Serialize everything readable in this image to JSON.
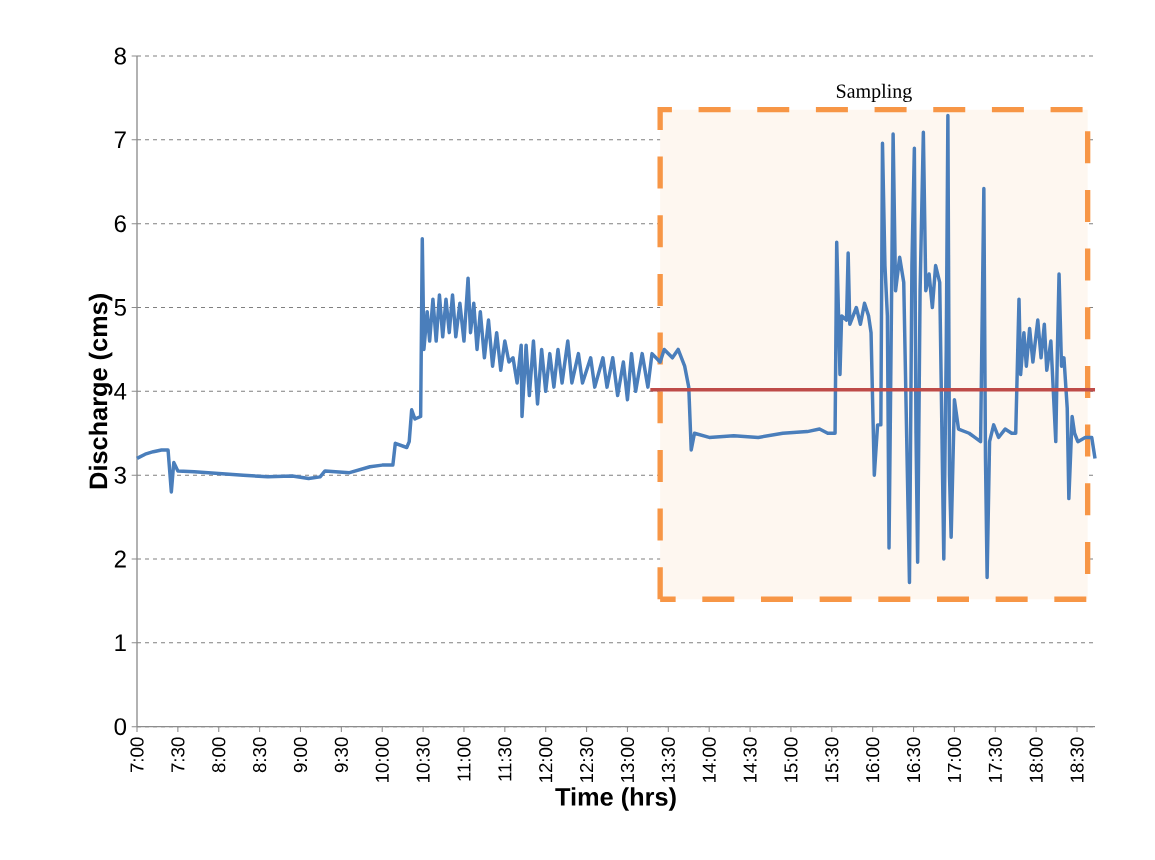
{
  "chart_data": {
    "type": "line",
    "xlabel": "Time (hrs)",
    "ylabel": "Discharge (cms)",
    "xlim": [
      7,
      18.72
    ],
    "ylim": [
      0,
      8
    ],
    "yticks": [
      0,
      1,
      2,
      3,
      4,
      5,
      6,
      7,
      8
    ],
    "xticks": [
      {
        "value": 7,
        "label": "7:00"
      },
      {
        "value": 7.5,
        "label": "7:30"
      },
      {
        "value": 8,
        "label": "8:00"
      },
      {
        "value": 8.5,
        "label": "8:30"
      },
      {
        "value": 9,
        "label": "9:00"
      },
      {
        "value": 9.5,
        "label": "9:30"
      },
      {
        "value": 10,
        "label": "10:00"
      },
      {
        "value": 10.5,
        "label": "10:30"
      },
      {
        "value": 11,
        "label": "11:00"
      },
      {
        "value": 11.5,
        "label": "11:30"
      },
      {
        "value": 12,
        "label": "12:00"
      },
      {
        "value": 12.5,
        "label": "12:30"
      },
      {
        "value": 13,
        "label": "13:00"
      },
      {
        "value": 13.5,
        "label": "13:30"
      },
      {
        "value": 14,
        "label": "14:00"
      },
      {
        "value": 14.5,
        "label": "14:30"
      },
      {
        "value": 15,
        "label": "15:00"
      },
      {
        "value": 15.5,
        "label": "15:30"
      },
      {
        "value": 16,
        "label": "16:00"
      },
      {
        "value": 16.5,
        "label": "16:30"
      },
      {
        "value": 17,
        "label": "17:00"
      },
      {
        "value": 17.5,
        "label": "17:30"
      },
      {
        "value": 18,
        "label": "18:00"
      },
      {
        "value": 18.5,
        "label": "18:30"
      }
    ],
    "grid": "y",
    "bands": [
      {
        "axis": "x",
        "from": 13.4,
        "to": 18.63,
        "label": "Sampling",
        "color": "#f79646"
      }
    ],
    "series": [
      {
        "color": "#4a7ebb",
        "x": [
          7.0,
          7.1,
          7.2,
          7.3,
          7.38,
          7.42,
          7.45,
          7.5,
          7.7,
          8.0,
          8.3,
          8.6,
          8.9,
          9.1,
          9.24,
          9.3,
          9.6,
          9.85,
          10.0,
          10.13,
          10.16,
          10.3,
          10.33,
          10.36,
          10.4,
          10.47,
          10.49,
          10.51,
          10.55,
          10.58,
          10.62,
          10.66,
          10.7,
          10.74,
          10.78,
          10.82,
          10.86,
          10.9,
          10.95,
          11.0,
          11.05,
          11.08,
          11.12,
          11.16,
          11.2,
          11.25,
          11.3,
          11.35,
          11.4,
          11.45,
          11.5,
          11.55,
          11.6,
          11.65,
          11.7,
          11.71,
          11.76,
          11.8,
          11.85,
          11.9,
          11.95,
          12.0,
          12.05,
          12.1,
          12.15,
          12.2,
          12.27,
          12.32,
          12.4,
          12.45,
          12.55,
          12.6,
          12.7,
          12.75,
          12.82,
          12.88,
          12.95,
          13.0,
          13.05,
          13.1,
          13.18,
          13.25,
          13.3,
          13.4,
          13.45,
          13.55,
          13.62,
          13.7,
          13.75,
          13.78,
          13.82,
          14.0,
          14.3,
          14.6,
          14.9,
          15.2,
          15.35,
          15.45,
          15.54,
          15.56,
          15.6,
          15.62,
          15.68,
          15.7,
          15.72,
          15.8,
          15.85,
          15.9,
          15.95,
          15.98,
          16.02,
          16.06,
          16.1,
          16.12,
          16.15,
          16.18,
          16.2,
          16.23,
          16.25,
          16.28,
          16.33,
          16.38,
          16.45,
          16.48,
          16.51,
          16.53,
          16.55,
          16.58,
          16.62,
          16.65,
          16.69,
          16.73,
          16.77,
          16.82,
          16.87,
          16.9,
          16.92,
          16.94,
          16.96,
          17.0,
          17.05,
          17.18,
          17.25,
          17.32,
          17.36,
          17.38,
          17.4,
          17.43,
          17.48,
          17.54,
          17.62,
          17.7,
          17.75,
          17.79,
          17.81,
          17.85,
          17.88,
          17.92,
          17.96,
          18.02,
          18.06,
          18.1,
          18.13,
          18.18,
          18.24,
          18.26,
          18.28,
          18.31,
          18.34,
          18.38,
          18.4,
          18.44,
          18.47,
          18.51,
          18.6,
          18.68,
          18.72
        ],
        "values": [
          3.2,
          3.25,
          3.28,
          3.3,
          3.3,
          2.8,
          3.15,
          3.05,
          3.04,
          3.02,
          3.0,
          2.98,
          2.99,
          2.96,
          2.98,
          3.05,
          3.03,
          3.1,
          3.12,
          3.12,
          3.38,
          3.33,
          3.4,
          3.78,
          3.67,
          3.7,
          5.82,
          4.5,
          4.95,
          4.6,
          5.1,
          4.6,
          5.15,
          4.65,
          5.1,
          4.7,
          5.15,
          4.65,
          5.05,
          4.6,
          5.35,
          4.7,
          5.05,
          4.5,
          4.95,
          4.4,
          4.85,
          4.3,
          4.7,
          4.25,
          4.6,
          4.35,
          4.4,
          4.1,
          4.55,
          3.7,
          4.55,
          3.95,
          4.6,
          3.85,
          4.5,
          4.0,
          4.45,
          4.05,
          4.5,
          4.1,
          4.6,
          4.1,
          4.45,
          4.1,
          4.4,
          4.05,
          4.4,
          4.05,
          4.4,
          3.95,
          4.35,
          3.9,
          4.45,
          4.0,
          4.45,
          4.05,
          4.45,
          4.35,
          4.5,
          4.4,
          4.5,
          4.3,
          4.05,
          3.3,
          3.5,
          3.45,
          3.47,
          3.45,
          3.5,
          3.52,
          3.55,
          3.5,
          3.5,
          5.78,
          4.2,
          4.9,
          4.85,
          5.65,
          4.8,
          5.0,
          4.8,
          5.05,
          4.9,
          4.7,
          3.0,
          3.6,
          3.6,
          6.96,
          5.5,
          4.9,
          2.13,
          5.0,
          7.07,
          5.2,
          5.6,
          5.3,
          1.72,
          5.5,
          6.9,
          3.5,
          1.96,
          5.2,
          7.09,
          5.2,
          5.4,
          5.0,
          5.5,
          5.3,
          2.0,
          4.5,
          7.29,
          3.0,
          2.26,
          3.9,
          3.55,
          3.5,
          3.45,
          3.4,
          6.42,
          3.2,
          1.78,
          3.4,
          3.6,
          3.45,
          3.55,
          3.5,
          3.5,
          5.1,
          4.2,
          4.7,
          4.3,
          4.75,
          4.35,
          4.85,
          4.4,
          4.8,
          4.25,
          4.6,
          3.4,
          4.5,
          5.4,
          4.3,
          4.4,
          3.8,
          2.72,
          3.7,
          3.5,
          3.4,
          3.45,
          3.45,
          3.2
        ]
      },
      {
        "color": "#be4b48",
        "x": [
          13.28,
          18.72
        ],
        "values": [
          4.02,
          4.02
        ]
      }
    ]
  }
}
